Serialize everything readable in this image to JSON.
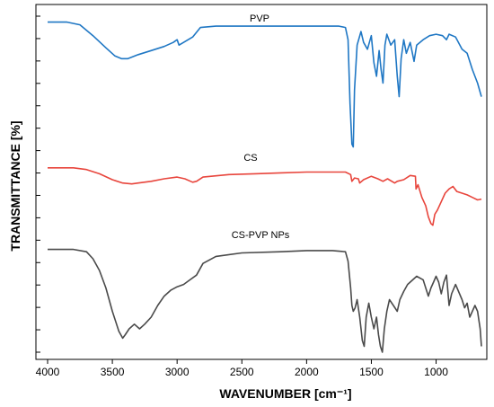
{
  "chart_data": {
    "type": "line",
    "xlabel": "WAVENUMBER [cm⁻¹]",
    "ylabel": "TRANSMITTANCE [%]",
    "xlim": [
      4000,
      650
    ],
    "x_ticks": [
      4000,
      3500,
      3000,
      2500,
      2000,
      1500,
      1000
    ],
    "x_tick_labels": [
      "4000",
      "3500",
      "3000",
      "2500",
      "2000",
      "1500",
      "1000"
    ],
    "y_tick_count": 16,
    "y_tick_labels": false,
    "grid": false,
    "series": [
      {
        "name": "PVP",
        "color": "#1f77c4",
        "points": [
          [
            4000,
            95
          ],
          [
            3850,
            95
          ],
          [
            3750,
            93
          ],
          [
            3650,
            85
          ],
          [
            3550,
            76
          ],
          [
            3480,
            70
          ],
          [
            3430,
            68
          ],
          [
            3380,
            68
          ],
          [
            3300,
            71
          ],
          [
            3200,
            74
          ],
          [
            3100,
            77
          ],
          [
            3030,
            80
          ],
          [
            3000,
            82
          ],
          [
            2985,
            78
          ],
          [
            2950,
            80
          ],
          [
            2880,
            84
          ],
          [
            2820,
            91
          ],
          [
            2700,
            92
          ],
          [
            2500,
            92
          ],
          [
            2300,
            92
          ],
          [
            2100,
            92
          ],
          [
            1900,
            92
          ],
          [
            1750,
            92
          ],
          [
            1700,
            91
          ],
          [
            1680,
            82
          ],
          [
            1665,
            35
          ],
          [
            1650,
            5
          ],
          [
            1640,
            3
          ],
          [
            1630,
            45
          ],
          [
            1610,
            78
          ],
          [
            1580,
            88
          ],
          [
            1560,
            80
          ],
          [
            1530,
            75
          ],
          [
            1500,
            85
          ],
          [
            1480,
            65
          ],
          [
            1460,
            55
          ],
          [
            1440,
            74
          ],
          [
            1425,
            60
          ],
          [
            1410,
            50
          ],
          [
            1395,
            78
          ],
          [
            1380,
            86
          ],
          [
            1350,
            78
          ],
          [
            1320,
            82
          ],
          [
            1300,
            55
          ],
          [
            1285,
            40
          ],
          [
            1270,
            68
          ],
          [
            1250,
            82
          ],
          [
            1230,
            72
          ],
          [
            1200,
            80
          ],
          [
            1170,
            66
          ],
          [
            1150,
            78
          ],
          [
            1100,
            82
          ],
          [
            1050,
            85
          ],
          [
            1000,
            86
          ],
          [
            950,
            85
          ],
          [
            920,
            82
          ],
          [
            900,
            86
          ],
          [
            850,
            84
          ],
          [
            800,
            75
          ],
          [
            760,
            72
          ],
          [
            720,
            60
          ],
          [
            680,
            50
          ],
          [
            650,
            40
          ]
        ]
      },
      {
        "name": "CS",
        "color": "#e8453c",
        "points": [
          [
            4000,
            80
          ],
          [
            3800,
            80
          ],
          [
            3700,
            78
          ],
          [
            3600,
            73
          ],
          [
            3500,
            66
          ],
          [
            3420,
            62
          ],
          [
            3350,
            61
          ],
          [
            3300,
            62
          ],
          [
            3200,
            64
          ],
          [
            3100,
            67
          ],
          [
            3000,
            69
          ],
          [
            2940,
            67
          ],
          [
            2880,
            63
          ],
          [
            2850,
            64
          ],
          [
            2800,
            69
          ],
          [
            2600,
            72
          ],
          [
            2400,
            73
          ],
          [
            2200,
            74
          ],
          [
            2000,
            75
          ],
          [
            1800,
            75
          ],
          [
            1700,
            75
          ],
          [
            1660,
            72
          ],
          [
            1650,
            64
          ],
          [
            1630,
            68
          ],
          [
            1600,
            67
          ],
          [
            1590,
            62
          ],
          [
            1560,
            66
          ],
          [
            1500,
            70
          ],
          [
            1450,
            67
          ],
          [
            1410,
            64
          ],
          [
            1375,
            67
          ],
          [
            1320,
            62
          ],
          [
            1300,
            64
          ],
          [
            1250,
            66
          ],
          [
            1200,
            71
          ],
          [
            1160,
            70
          ],
          [
            1155,
            55
          ],
          [
            1140,
            60
          ],
          [
            1110,
            45
          ],
          [
            1080,
            35
          ],
          [
            1060,
            22
          ],
          [
            1040,
            14
          ],
          [
            1025,
            12
          ],
          [
            1010,
            25
          ],
          [
            990,
            30
          ],
          [
            960,
            40
          ],
          [
            930,
            50
          ],
          [
            900,
            55
          ],
          [
            870,
            58
          ],
          [
            840,
            52
          ],
          [
            800,
            50
          ],
          [
            760,
            48
          ],
          [
            720,
            45
          ],
          [
            680,
            42
          ],
          [
            650,
            43
          ]
        ]
      },
      {
        "name": "CS-PVP NPs",
        "color": "#4a4a4a",
        "points": [
          [
            4000,
            88
          ],
          [
            3800,
            88
          ],
          [
            3700,
            86
          ],
          [
            3650,
            80
          ],
          [
            3600,
            70
          ],
          [
            3550,
            55
          ],
          [
            3500,
            35
          ],
          [
            3450,
            18
          ],
          [
            3420,
            12
          ],
          [
            3400,
            15
          ],
          [
            3370,
            20
          ],
          [
            3330,
            24
          ],
          [
            3290,
            20
          ],
          [
            3250,
            24
          ],
          [
            3200,
            30
          ],
          [
            3150,
            40
          ],
          [
            3100,
            48
          ],
          [
            3050,
            53
          ],
          [
            3000,
            56
          ],
          [
            2950,
            58
          ],
          [
            2900,
            62
          ],
          [
            2850,
            66
          ],
          [
            2800,
            76
          ],
          [
            2700,
            82
          ],
          [
            2500,
            85
          ],
          [
            2200,
            86
          ],
          [
            2000,
            87
          ],
          [
            1800,
            87
          ],
          [
            1700,
            86
          ],
          [
            1680,
            78
          ],
          [
            1660,
            55
          ],
          [
            1650,
            40
          ],
          [
            1640,
            35
          ],
          [
            1625,
            38
          ],
          [
            1610,
            45
          ],
          [
            1590,
            30
          ],
          [
            1570,
            10
          ],
          [
            1555,
            5
          ],
          [
            1540,
            30
          ],
          [
            1520,
            42
          ],
          [
            1500,
            30
          ],
          [
            1480,
            20
          ],
          [
            1460,
            30
          ],
          [
            1445,
            15
          ],
          [
            1430,
            5
          ],
          [
            1415,
            0
          ],
          [
            1400,
            20
          ],
          [
            1380,
            35
          ],
          [
            1360,
            45
          ],
          [
            1330,
            40
          ],
          [
            1300,
            35
          ],
          [
            1280,
            45
          ],
          [
            1250,
            52
          ],
          [
            1220,
            58
          ],
          [
            1200,
            60
          ],
          [
            1150,
            65
          ],
          [
            1100,
            62
          ],
          [
            1080,
            55
          ],
          [
            1060,
            48
          ],
          [
            1040,
            55
          ],
          [
            1020,
            60
          ],
          [
            1000,
            65
          ],
          [
            980,
            60
          ],
          [
            960,
            50
          ],
          [
            940,
            60
          ],
          [
            920,
            66
          ],
          [
            900,
            40
          ],
          [
            880,
            50
          ],
          [
            850,
            58
          ],
          [
            800,
            45
          ],
          [
            780,
            38
          ],
          [
            760,
            42
          ],
          [
            740,
            30
          ],
          [
            720,
            35
          ],
          [
            700,
            40
          ],
          [
            680,
            35
          ],
          [
            660,
            20
          ],
          [
            650,
            5
          ]
        ]
      }
    ]
  }
}
